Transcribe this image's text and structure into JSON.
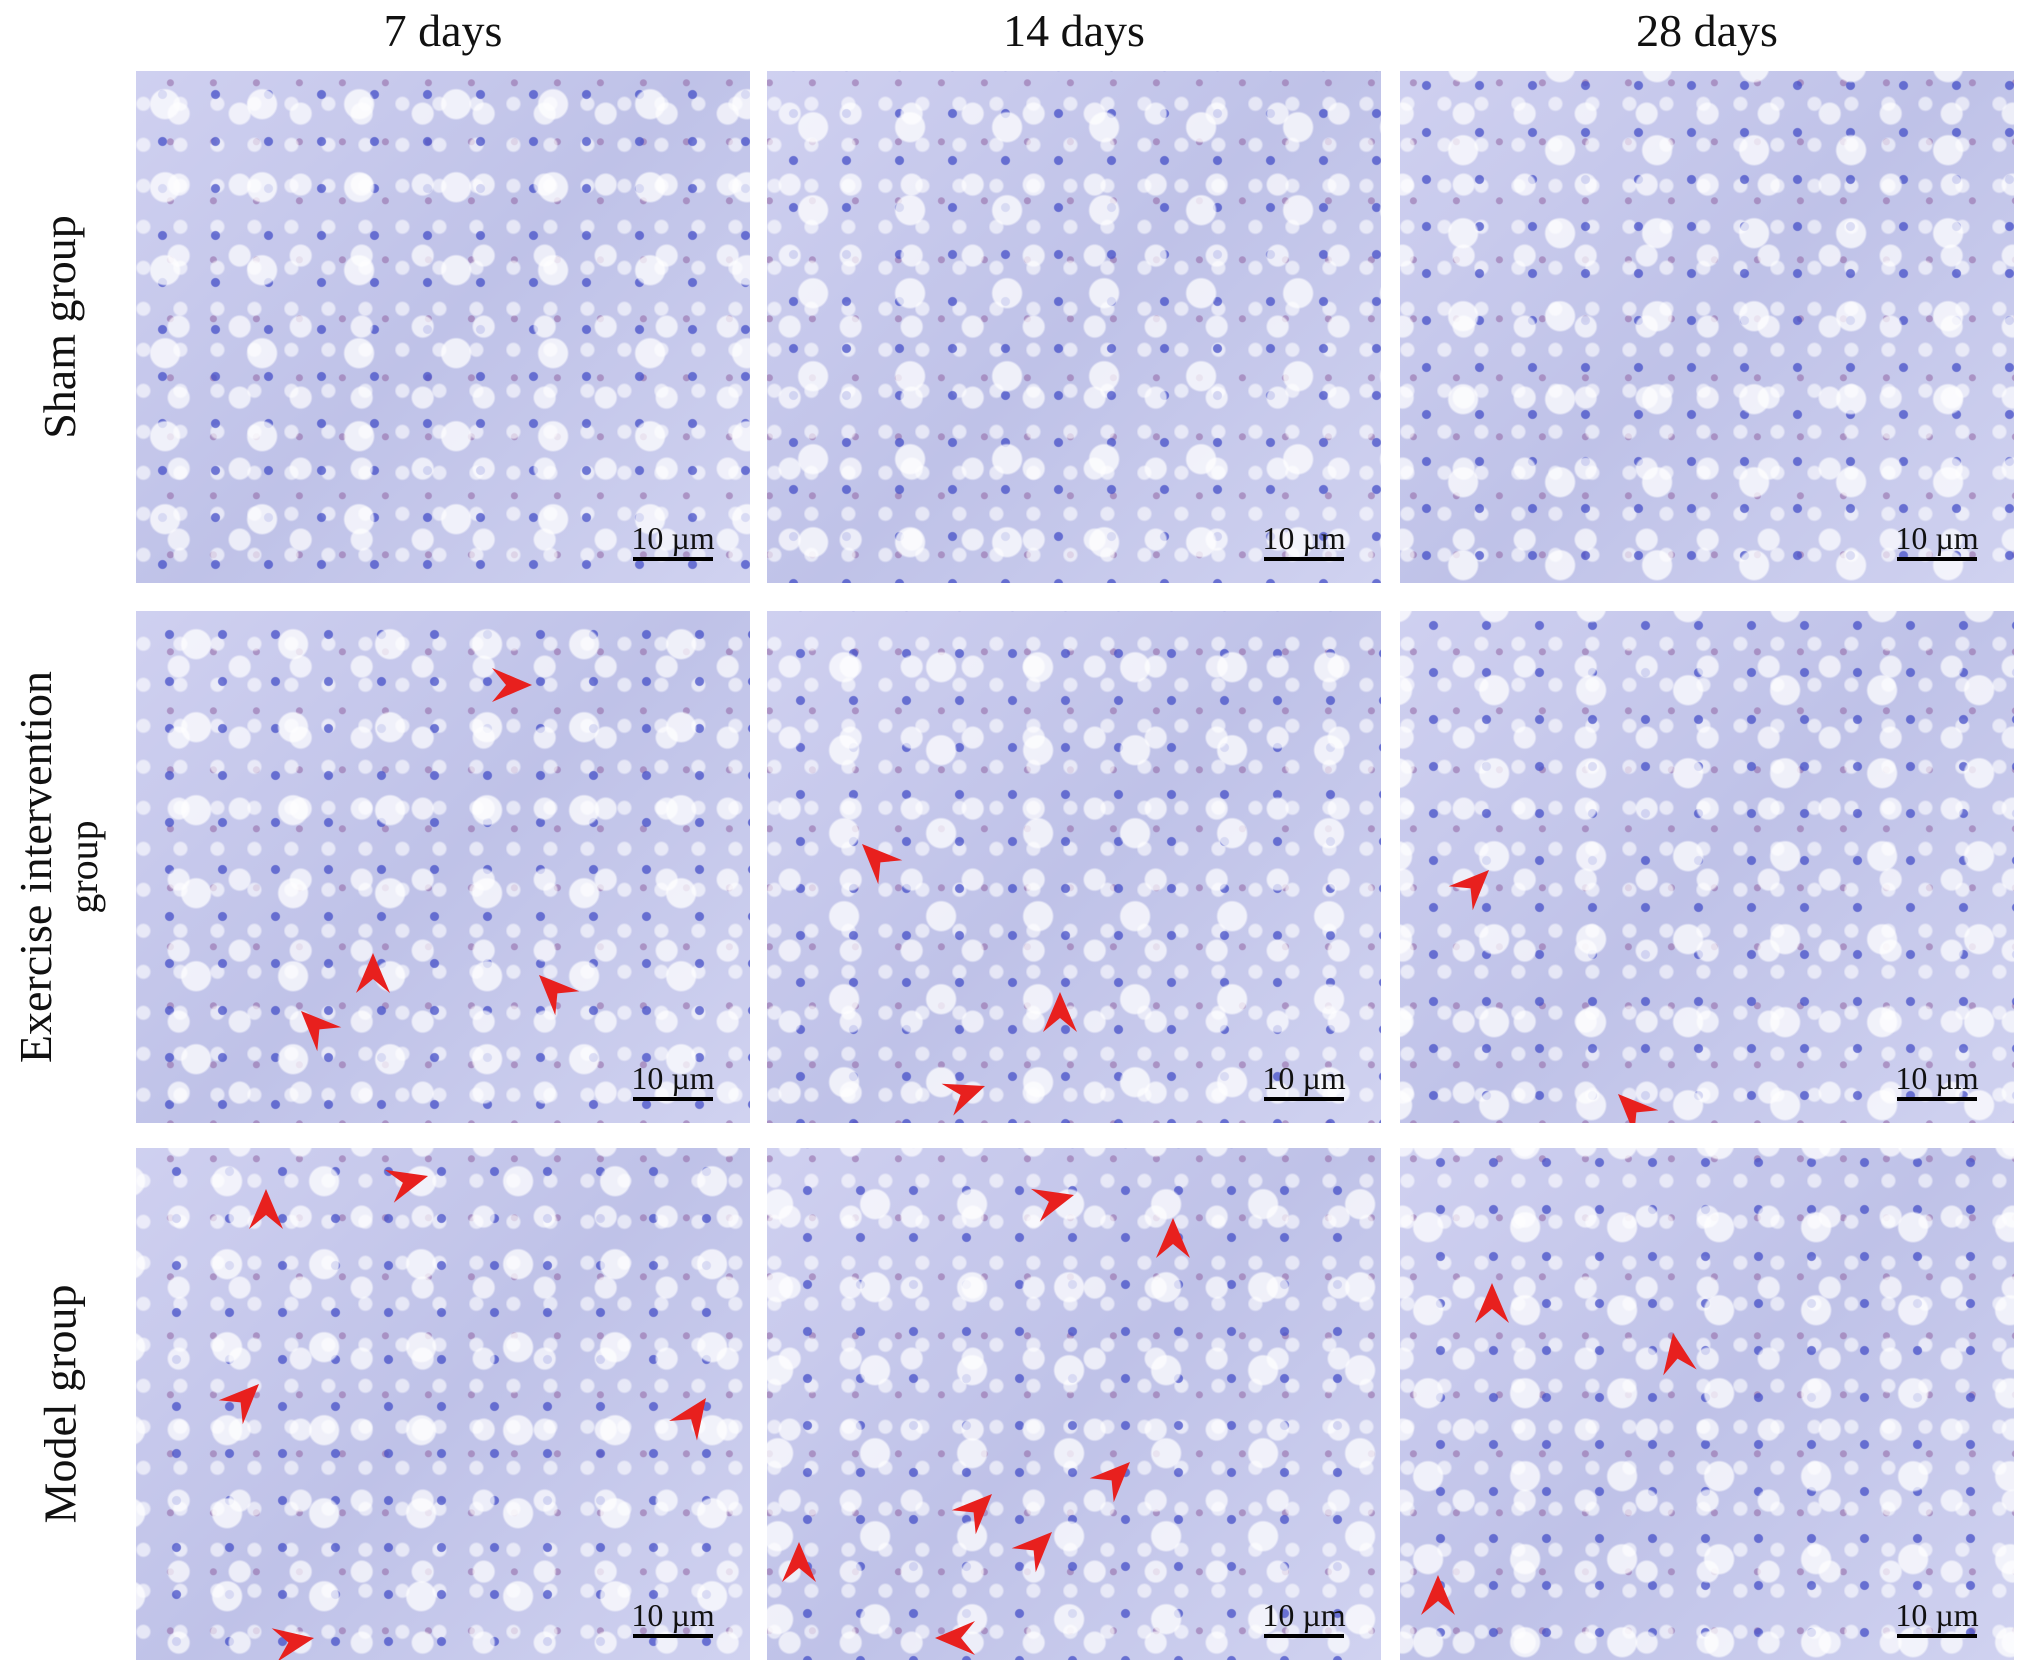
{
  "columns": [
    "7  days",
    "14 days",
    "28 days"
  ],
  "rows": [
    {
      "label_lines": [
        "Sham group"
      ]
    },
    {
      "label_lines": [
        "Exercise intervention",
        "group"
      ]
    },
    {
      "label_lines": [
        "Model group"
      ]
    }
  ],
  "scale_bar_label": "10 µm",
  "colors": {
    "arrow": "#e8201e",
    "stain_background": "#c8c9ec",
    "nuclei": "#4650c8"
  }
}
